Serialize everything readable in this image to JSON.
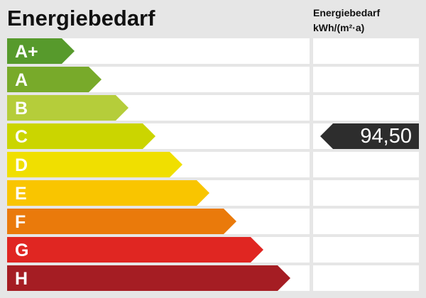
{
  "title": "Energiebedarf",
  "column_header": {
    "line1": "Energiebedarf",
    "line2": "kWh/(m²·a)"
  },
  "classes": [
    {
      "label": "A+",
      "color": "#579a2c"
    },
    {
      "label": "A",
      "color": "#78aa2a"
    },
    {
      "label": "B",
      "color": "#b5cd3a"
    },
    {
      "label": "C",
      "color": "#cbd500"
    },
    {
      "label": "D",
      "color": "#f0df00"
    },
    {
      "label": "E",
      "color": "#f9c500"
    },
    {
      "label": "F",
      "color": "#ea7a0b"
    },
    {
      "label": "G",
      "color": "#e02622"
    },
    {
      "label": "H",
      "color": "#a51d23"
    }
  ],
  "indicator": {
    "value": "94,50",
    "class": "C",
    "color": "#2d2d2d"
  }
}
